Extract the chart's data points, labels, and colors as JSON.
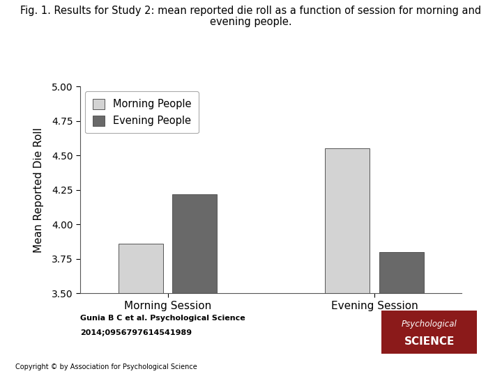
{
  "title_line1": "Fig. 1. Results for Study 2: mean reported die roll as a function of session for morning and",
  "title_line2": "evening people.",
  "xlabel_sessions": [
    "Morning Session",
    "Evening Session"
  ],
  "legend_labels": [
    "Morning People",
    "Evening People"
  ],
  "morning_people": [
    3.86,
    4.55
  ],
  "evening_people": [
    4.22,
    3.8
  ],
  "ylim": [
    3.5,
    5.0
  ],
  "yticks": [
    3.5,
    3.75,
    4.0,
    4.25,
    4.5,
    4.75,
    5.0
  ],
  "ylabel": "Mean Reported Die Roll",
  "bar_color_morning": "#d3d3d3",
  "bar_color_evening": "#696969",
  "bar_width": 0.28,
  "group_positions": [
    1.0,
    2.3
  ],
  "citation_line1": "Gunia B C et al. Psychological Science",
  "citation_line2": "2014;0956797614541989",
  "copyright_text": "Copyright © by Association for Psychological Science",
  "ps_box_color": "#8B1A1A",
  "background_color": "#ffffff",
  "title_fontsize": 10.5,
  "axis_fontsize": 11,
  "tick_fontsize": 10,
  "legend_fontsize": 10.5
}
